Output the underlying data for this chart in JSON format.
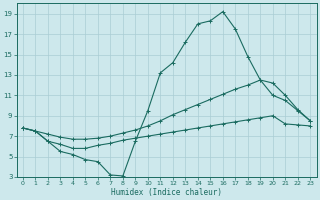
{
  "xlabel": "Humidex (Indice chaleur)",
  "bg_color": "#cde8ec",
  "grid_color": "#aacdd4",
  "line_color": "#1a6b60",
  "xlim": [
    -0.5,
    23.5
  ],
  "ylim": [
    3,
    20
  ],
  "xticks": [
    0,
    1,
    2,
    3,
    4,
    5,
    6,
    7,
    8,
    9,
    10,
    11,
    12,
    13,
    14,
    15,
    16,
    17,
    18,
    19,
    20,
    21,
    22,
    23
  ],
  "yticks": [
    3,
    5,
    7,
    9,
    11,
    13,
    15,
    17,
    19
  ],
  "line1_x": [
    0,
    1,
    2,
    3,
    4,
    5,
    6,
    7,
    8,
    9,
    10,
    11,
    12,
    13,
    14,
    15,
    16,
    17,
    18,
    19,
    20,
    21,
    22,
    23
  ],
  "line1_y": [
    7.8,
    7.5,
    6.5,
    5.5,
    5.2,
    4.7,
    4.5,
    3.2,
    3.1,
    6.5,
    9.5,
    13.2,
    14.2,
    16.2,
    18.0,
    18.3,
    19.2,
    17.5,
    14.8,
    12.5,
    11.0,
    10.5,
    9.5,
    8.5
  ],
  "line2_x": [
    0,
    1,
    2,
    3,
    4,
    5,
    6,
    7,
    8,
    9,
    10,
    11,
    12,
    13,
    14,
    15,
    16,
    17,
    18,
    19,
    20,
    21,
    22,
    23
  ],
  "line2_y": [
    7.8,
    7.5,
    6.5,
    6.2,
    5.8,
    5.8,
    6.1,
    6.3,
    6.6,
    6.8,
    7.0,
    7.2,
    7.4,
    7.6,
    7.8,
    8.0,
    8.2,
    8.4,
    8.6,
    8.8,
    9.0,
    8.2,
    8.1,
    8.0
  ],
  "line3_x": [
    0,
    1,
    2,
    3,
    4,
    5,
    6,
    7,
    8,
    9,
    10,
    11,
    12,
    13,
    14,
    15,
    16,
    17,
    18,
    19,
    20,
    21,
    22,
    23
  ],
  "line3_y": [
    7.8,
    7.5,
    7.2,
    6.9,
    6.7,
    6.7,
    6.8,
    7.0,
    7.3,
    7.6,
    8.0,
    8.5,
    9.1,
    9.6,
    10.1,
    10.6,
    11.1,
    11.6,
    12.0,
    12.5,
    12.2,
    11.0,
    9.6,
    8.5
  ]
}
